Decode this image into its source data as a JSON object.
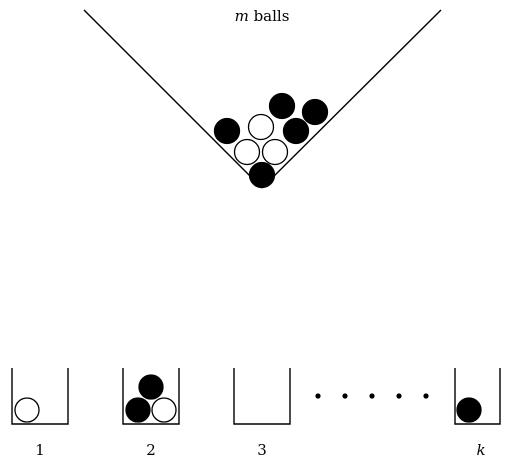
{
  "funnel": {
    "label_var": "m",
    "label_word": " balls",
    "balls": [
      {
        "color": "black"
      },
      {
        "color": "white"
      },
      {
        "color": "white"
      },
      {
        "color": "white"
      },
      {
        "color": "black"
      },
      {
        "color": "black"
      },
      {
        "color": "black"
      },
      {
        "color": "black"
      }
    ]
  },
  "bins": [
    {
      "label": "1",
      "balls": [
        "white"
      ]
    },
    {
      "label": "2",
      "balls": [
        "black",
        "white",
        "black"
      ]
    },
    {
      "label": "3",
      "balls": []
    },
    {
      "label": "k",
      "balls": [
        "black"
      ]
    }
  ],
  "ellipsis_dot_count": 5
}
